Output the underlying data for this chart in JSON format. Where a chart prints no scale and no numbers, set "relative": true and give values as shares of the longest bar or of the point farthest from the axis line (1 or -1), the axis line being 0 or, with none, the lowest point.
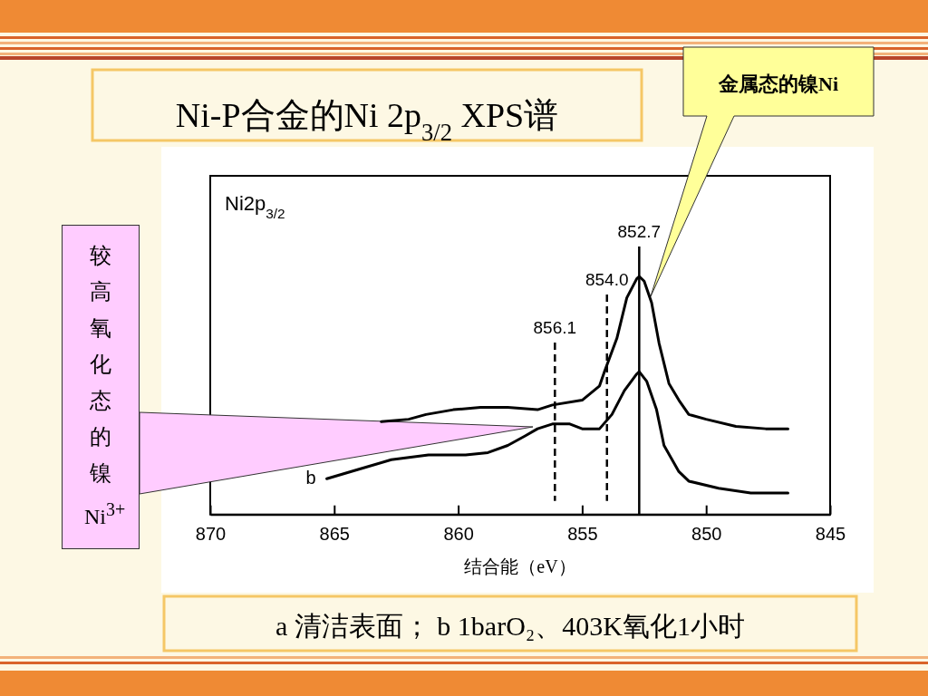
{
  "chart_data": {
    "type": "line",
    "relative": true,
    "title": "Ni-P合金的Ni 2p$_{3/2}$ XPS谱",
    "xlabel": "结合能（eV）",
    "xlim": [
      870,
      845
    ],
    "xticks": [
      870,
      865,
      860,
      855,
      850,
      845
    ],
    "grid": false,
    "marker": "none",
    "line_style": "solid",
    "series": [
      {
        "color": "#000000",
        "x": [
          863.1,
          862.0,
          861.3,
          860.2,
          859.1,
          858.0,
          856.8,
          856.2,
          855.0,
          854.3,
          854.1,
          853.6,
          853.2,
          852.8,
          852.7,
          852.5,
          852.2,
          851.9,
          851.5,
          851.1,
          850.7,
          850.0,
          848.8,
          847.6,
          846.7
        ],
        "values": [
          0.39,
          0.4,
          0.42,
          0.44,
          0.45,
          0.45,
          0.44,
          0.46,
          0.48,
          0.54,
          0.6,
          0.74,
          0.91,
          0.99,
          1,
          0.98,
          0.89,
          0.72,
          0.55,
          0.48,
          0.42,
          0.4,
          0.37,
          0.36,
          0.36
        ]
      },
      {
        "name": "b",
        "color": "#000000",
        "x": [
          865.3,
          864.0,
          862.7,
          861.2,
          859.7,
          858.8,
          858.0,
          857.3,
          856.8,
          856.2,
          855.5,
          855.0,
          854.3,
          853.8,
          853.3,
          852.8,
          852.7,
          852.4,
          852.0,
          851.7,
          851.1,
          850.7,
          849.5,
          848.2,
          846.7
        ],
        "values": [
          0.15,
          0.19,
          0.23,
          0.25,
          0.25,
          0.26,
          0.29,
          0.33,
          0.36,
          0.38,
          0.38,
          0.36,
          0.36,
          0.42,
          0.52,
          0.59,
          0.6,
          0.56,
          0.44,
          0.29,
          0.18,
          0.14,
          0.11,
          0.09,
          0.09
        ]
      }
    ],
    "ref_lines": [
      {
        "axis": "x",
        "value": 856.1,
        "label": "856.1",
        "line_style": "dashed",
        "color": "#000000"
      },
      {
        "axis": "x",
        "value": 854.0,
        "label": "854.0",
        "line_style": "dashed",
        "color": "#000000"
      },
      {
        "axis": "x",
        "value": 852.7,
        "label": "852.7",
        "line_style": "solid",
        "color": "#000000"
      }
    ],
    "annotations": [
      "Ni2p$_{3/2}$",
      "金属态的镍Ni",
      "较高氧化态的镍Ni$^{3+}$",
      "a 清洁表面；  b 1barO₂、403K氧化1小时"
    ]
  }
}
